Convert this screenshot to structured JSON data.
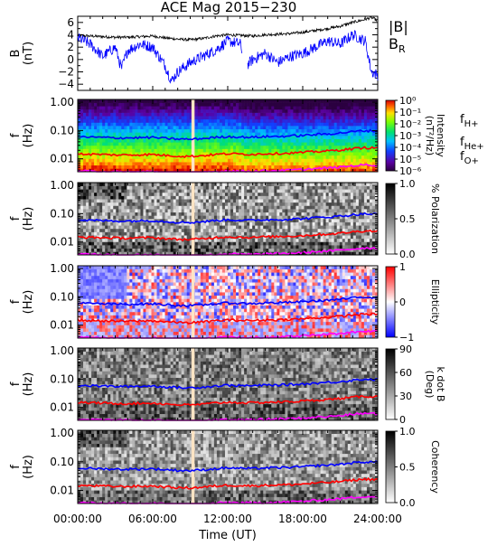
{
  "title": "ACE Mag 2015−230",
  "colors": {
    "H": "#0000ff",
    "He": "#ff0000",
    "O": "#ff00ff",
    "bR": "#0000ff",
    "bmag": "#000000",
    "gap": "#ffe4c4"
  },
  "chart_data": [
    {
      "type": "line",
      "panel": "B",
      "ylabel": "B\n(nT)",
      "ylim": [
        -5,
        7
      ],
      "yticks": [
        "6",
        "4",
        "2",
        "0",
        "−2",
        "−4"
      ],
      "xlim_hours": [
        0,
        24
      ],
      "series": [
        {
          "name": "|B|",
          "x": [
            0,
            1,
            2,
            3,
            4,
            5,
            6,
            7,
            8,
            9,
            10,
            11,
            12,
            13,
            14,
            15,
            16,
            17,
            18,
            19,
            20,
            21,
            22,
            23,
            23.5,
            24
          ],
          "y": [
            3.9,
            3.8,
            3.7,
            3.6,
            3.6,
            3.7,
            3.8,
            3.5,
            3.3,
            3.2,
            3.4,
            3.8,
            4.0,
            3.9,
            3.8,
            4.0,
            4.1,
            4.2,
            4.4,
            4.7,
            5.0,
            5.4,
            6.0,
            6.5,
            6.8,
            6.3
          ]
        },
        {
          "name": "B",
          "subscript": "R",
          "x": [
            0,
            1,
            2,
            3,
            3.5,
            4,
            5,
            6,
            7,
            7.5,
            8,
            9,
            10,
            11,
            12,
            13,
            13.5,
            14,
            15,
            16,
            17,
            18,
            19,
            20,
            21,
            22,
            23,
            23.5,
            24
          ],
          "y": [
            3.5,
            2.5,
            0.5,
            2.0,
            -1.5,
            1.5,
            2.5,
            2.0,
            -1.0,
            -3.5,
            -2.0,
            -0.5,
            0.5,
            1.5,
            3.0,
            2.5,
            -1.0,
            0.0,
            1.0,
            -0.5,
            0.5,
            1.0,
            2.0,
            3.0,
            2.5,
            4.0,
            3.0,
            -2.0,
            -2.5
          ]
        }
      ]
    },
    {
      "type": "heatmap",
      "panel": "intensity",
      "ylabel": "f\n(Hz)",
      "yticks": [
        "1.00",
        "0.10",
        "0.01"
      ],
      "colorbar": {
        "label": "Intensity\n(nT²/Hz)",
        "ticks": [
          "10⁰",
          "10⁻¹",
          "10⁻²",
          "10⁻³",
          "10⁻⁴",
          "10⁻⁵",
          "10⁻⁶"
        ],
        "scale": "rainbow"
      }
    },
    {
      "type": "heatmap",
      "panel": "polarization",
      "ylabel": "f\n(Hz)",
      "yticks": [
        "1.00",
        "0.10",
        "0.01"
      ],
      "colorbar": {
        "label": "% Polarization",
        "ticks": [
          "1.0",
          "0.5",
          "0.0"
        ],
        "scale": "gray"
      }
    },
    {
      "type": "heatmap",
      "panel": "ellipticity",
      "ylabel": "f\n(Hz)",
      "yticks": [
        "1.00",
        "0.10",
        "0.01"
      ],
      "colorbar": {
        "label": "Ellipticity",
        "ticks": [
          "1",
          "0",
          "−1"
        ],
        "scale": "bwr"
      }
    },
    {
      "type": "heatmap",
      "panel": "kdotb",
      "ylabel": "f\n(Hz)",
      "yticks": [
        "1.00",
        "0.10",
        "0.01"
      ],
      "colorbar": {
        "label": "k dot B\n(Deg)",
        "ticks": [
          "90",
          "60",
          "30",
          "0"
        ],
        "scale": "gray"
      }
    },
    {
      "type": "heatmap",
      "panel": "coherency",
      "ylabel": "f\n(Hz)",
      "yticks": [
        "1.00",
        "0.10",
        "0.01"
      ],
      "colorbar": {
        "label": "Coherency",
        "ticks": [
          "1.0",
          "0.5",
          "0.0"
        ],
        "scale": "gray"
      }
    }
  ],
  "gyro": {
    "legend": [
      {
        "key": "H",
        "base": "f",
        "sub": "H+"
      },
      {
        "key": "He",
        "base": "f",
        "sub": "He+"
      },
      {
        "key": "O",
        "base": "f",
        "sub": "O+"
      }
    ],
    "hours": [
      0,
      1,
      2,
      3,
      4,
      5,
      6,
      7,
      8,
      9,
      10,
      11,
      12,
      13,
      14,
      15,
      16,
      17,
      18,
      19,
      20,
      21,
      22,
      23,
      24
    ],
    "fH": [
      0.06,
      0.058,
      0.057,
      0.055,
      0.055,
      0.056,
      0.057,
      0.053,
      0.05,
      0.049,
      0.052,
      0.057,
      0.061,
      0.059,
      0.058,
      0.061,
      0.062,
      0.064,
      0.067,
      0.072,
      0.076,
      0.082,
      0.091,
      0.099,
      0.096
    ]
  },
  "xaxis": {
    "label": "Time (UT)",
    "ticks": [
      0,
      6,
      12,
      18,
      24
    ],
    "tick_labels": [
      "00:00:00",
      "06:00:00",
      "12:00:00",
      "18:00:00",
      "24:00:00"
    ]
  },
  "data_gap_hours": [
    9.1,
    9.35
  ],
  "bdata_gap_hours": [
    13.2,
    13.6
  ]
}
